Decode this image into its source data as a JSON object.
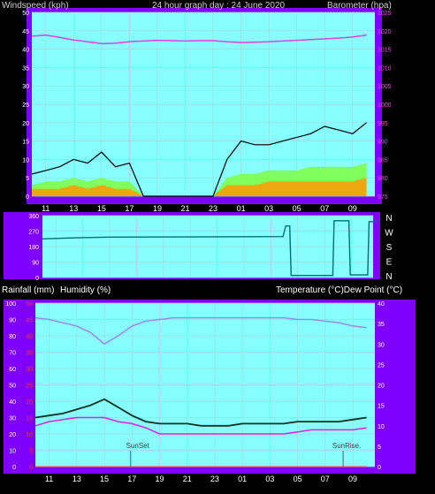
{
  "window": {
    "top_title_left": "Windspeed (kph)",
    "top_title_center": "24 hour graph day : 24 June 2020",
    "top_title_right": "Barometer (hpa)",
    "bottom_title_left_1": "Rainfall (mm)",
    "bottom_title_left_2": "Humidity (%)",
    "bottom_title_right": "Temperature (°C)Dew Point (°C)"
  },
  "colors": {
    "background": "#000000",
    "plot_bg": "#87FFFF",
    "panel_bg": "#8000FF",
    "grid": "#9DD9D9",
    "wind_series": "#000000",
    "gust_green": "#80FF40",
    "wind_orange": "#FF9900",
    "barometer": "#E040E0",
    "direction": "#007070",
    "humidity": "#9B8BE0",
    "temperature": "#103020",
    "dewpoint": "#E020E0",
    "rainfall": "#FF6060"
  },
  "x_ticks": [
    "11",
    "13",
    "15",
    "17",
    "19",
    "21",
    "23",
    "01",
    "03",
    "05",
    "07",
    "09"
  ],
  "chart_data": [
    {
      "type": "line",
      "name_ref": "wind-barometer",
      "title": "24 hour graph day : 24 June 2020",
      "ylabel_left": "Windspeed (kph)",
      "ylabel_right": "Barometer (hpa)",
      "ylim_left": [
        0,
        50
      ],
      "ylim_right": [
        975,
        1025
      ],
      "y_ticks_left": [
        "0",
        "5",
        "10",
        "15",
        "20",
        "25",
        "30",
        "35",
        "40",
        "45",
        "50"
      ],
      "y_ticks_right": [
        "975",
        "980",
        "985",
        "990",
        "995",
        "1000",
        "1005",
        "1010",
        "1015",
        "1020",
        "1025"
      ],
      "x_hours": [
        10,
        11,
        12,
        13,
        14,
        15,
        16,
        17,
        18,
        19,
        20,
        21,
        22,
        23,
        24,
        25,
        26,
        27,
        28,
        29,
        30,
        31,
        32,
        33,
        34
      ],
      "series": [
        {
          "name": "Barometer",
          "axis": "right",
          "values": [
            1018.5,
            1018.8,
            1018.2,
            1017.5,
            1017.0,
            1016.5,
            1016.6,
            1017.0,
            1017.2,
            1017.4,
            1017.3,
            1017.2,
            1017.3,
            1017.3,
            1017.0,
            1016.8,
            1016.9,
            1017.0,
            1017.2,
            1017.4,
            1017.6,
            1017.8,
            1018.0,
            1018.3,
            1018.8
          ]
        },
        {
          "name": "Wind Gust",
          "axis": "left",
          "values": [
            6,
            7,
            8,
            10,
            9,
            12,
            8,
            9,
            0,
            0,
            0,
            0,
            0,
            0,
            10,
            15,
            14,
            14,
            15,
            16,
            17,
            19,
            18,
            17,
            20
          ]
        },
        {
          "name": "Wind Speed",
          "axis": "left",
          "values": [
            3,
            4,
            4,
            5,
            4,
            5,
            4,
            4,
            0,
            0,
            0,
            0,
            0,
            0,
            5,
            6,
            6,
            7,
            7,
            7,
            8,
            8,
            8,
            8,
            9
          ]
        },
        {
          "name": "Wind Average",
          "axis": "left",
          "values": [
            2,
            2,
            2,
            3,
            2,
            3,
            2,
            2,
            0,
            0,
            0,
            0,
            0,
            0,
            3,
            3,
            3,
            4,
            4,
            4,
            4,
            4,
            4,
            4,
            5
          ]
        }
      ]
    },
    {
      "type": "line",
      "name_ref": "wind-direction",
      "y_ticks_left": [
        "0",
        "90",
        "180",
        "270",
        "360"
      ],
      "y_labels_right": [
        "N",
        "W",
        "S",
        "E",
        "N"
      ],
      "ylim": [
        0,
        360
      ],
      "series": [
        {
          "name": "Wind Direction",
          "points": [
            [
              10,
              225
            ],
            [
              12,
              230
            ],
            [
              13,
              232
            ],
            [
              15,
              235
            ],
            [
              27.9,
              238
            ],
            [
              28.1,
              300
            ],
            [
              28.4,
              300
            ],
            [
              28.5,
              12
            ],
            [
              31.6,
              12
            ],
            [
              31.7,
              330
            ],
            [
              32.8,
              330
            ],
            [
              32.9,
              15
            ],
            [
              34.2,
              15
            ],
            [
              34.3,
              325
            ],
            [
              34.7,
              325
            ],
            [
              34.8,
              340
            ]
          ]
        }
      ]
    },
    {
      "type": "line",
      "name_ref": "temp-humidity",
      "ylabel_left": "Rainfall (mm)",
      "ylabel_left_2": "Humidity (%)",
      "ylabel_right": "Temperature (°C)Dew Point (°C)",
      "ylim_humidity": [
        0,
        100
      ],
      "ylim_rain": [
        0,
        50
      ],
      "ylim_temp": [
        0,
        40
      ],
      "y_ticks_humidity": [
        "0",
        "10",
        "20",
        "30",
        "40",
        "50",
        "60",
        "70",
        "80",
        "90",
        "100"
      ],
      "y_ticks_rain": [
        "0",
        "5",
        "10",
        "15",
        "20",
        "25",
        "30",
        "35",
        "40",
        "45",
        "50"
      ],
      "y_ticks_temp": [
        "0",
        "5",
        "10",
        "15",
        "20",
        "25",
        "30",
        "35",
        "40"
      ],
      "annotations": [
        "SunSet",
        "SunRise."
      ],
      "x_hours": [
        10,
        11,
        12,
        13,
        14,
        15,
        16,
        17,
        18,
        19,
        20,
        21,
        22,
        23,
        24,
        25,
        26,
        27,
        28,
        29,
        30,
        31,
        32,
        33,
        34
      ],
      "series": [
        {
          "name": "Humidity",
          "axis": "humidity",
          "values": [
            91,
            90,
            88,
            86,
            82,
            75,
            80,
            86,
            89,
            90,
            91,
            91,
            91,
            91,
            91,
            91,
            91,
            91,
            91,
            90,
            90,
            89,
            88,
            86,
            85
          ]
        },
        {
          "name": "Temperature",
          "axis": "temp",
          "values": [
            12,
            12.5,
            13,
            14,
            15,
            16.5,
            14.5,
            12.5,
            11,
            10.5,
            10.5,
            10.5,
            10,
            10,
            10,
            10.5,
            10.5,
            10.5,
            10.5,
            11,
            11,
            11,
            11,
            11.5,
            12
          ]
        },
        {
          "name": "Dew Point",
          "axis": "temp",
          "values": [
            10,
            11,
            11.5,
            12,
            12,
            12,
            11,
            10.5,
            9.5,
            8,
            8,
            8,
            8,
            8,
            8,
            8,
            8,
            8,
            8,
            8.5,
            9,
            9,
            9,
            9,
            9.5
          ]
        },
        {
          "name": "Rainfall",
          "axis": "rain",
          "values": [
            0,
            0,
            0,
            0,
            0,
            0,
            0,
            0,
            0,
            0,
            0,
            0,
            0,
            0,
            0,
            0,
            0,
            0,
            0,
            0,
            0,
            0,
            0,
            0,
            0
          ]
        }
      ]
    }
  ]
}
